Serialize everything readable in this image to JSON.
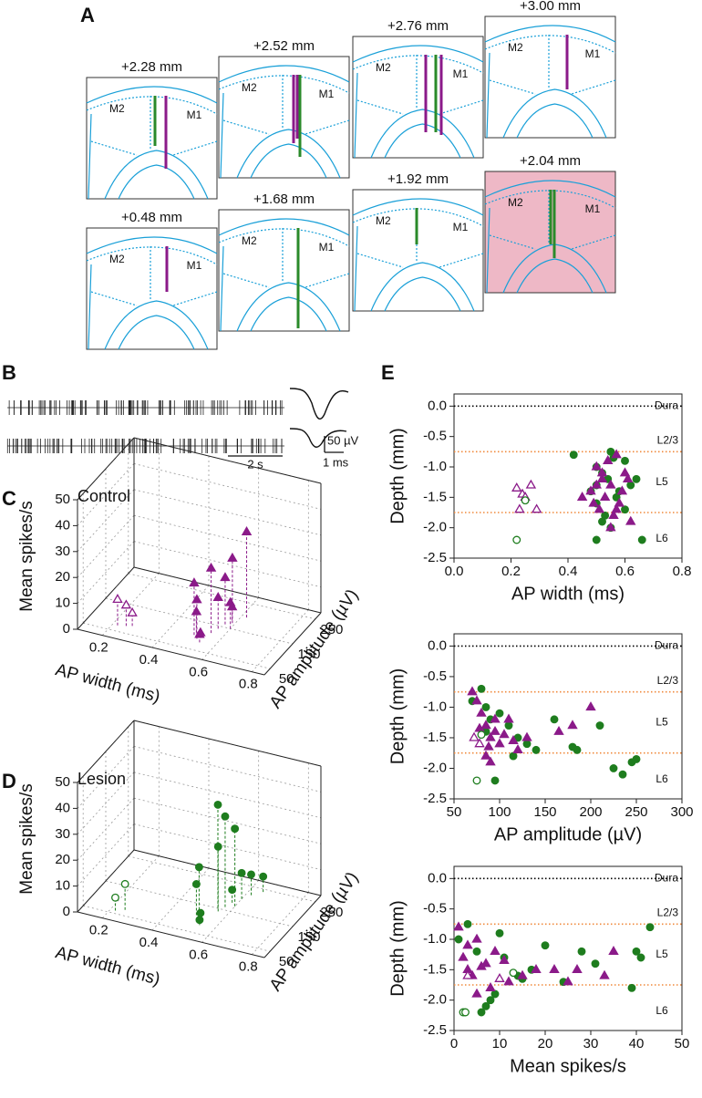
{
  "panel_labels": [
    "A",
    "B",
    "C",
    "D",
    "E"
  ],
  "panel_a": {
    "sections": [
      {
        "title": "+2.28 mm",
        "labels": [
          "M2",
          "M1"
        ]
      },
      {
        "title": "+2.52 mm",
        "labels": [
          "M2",
          "M1"
        ]
      },
      {
        "title": "+2.76 mm",
        "labels": [
          "M2",
          "M1"
        ]
      },
      {
        "title": "+3.00 mm",
        "labels": [
          "M2",
          "M1"
        ]
      },
      {
        "title": "+0.48 mm",
        "labels": [
          "M2",
          "M1"
        ]
      },
      {
        "title": "+1.68 mm",
        "labels": [
          "M2",
          "M1"
        ]
      },
      {
        "title": "+1.92 mm",
        "labels": [
          "M2",
          "M1"
        ]
      },
      {
        "title": "+2.04 mm",
        "labels": [
          "M2",
          "M1"
        ]
      }
    ]
  },
  "panel_b": {
    "scale_labels": [
      "50 µV",
      "1 ms",
      "2 s"
    ]
  },
  "chart_data": [
    {
      "type": "scatter3d",
      "title": "Control",
      "xlabel": "AP width (ms)",
      "ylabel": "AP amplitude (µV)",
      "zlabel": "Mean spikes/s",
      "xlim": [
        0.1,
        0.85
      ],
      "ylim": [
        25,
        275
      ],
      "zlim": [
        0,
        50
      ],
      "xticks": [
        0.2,
        0.4,
        0.6,
        0.8
      ],
      "yticks": [
        50,
        150,
        250
      ],
      "zticks": [
        0,
        10,
        20,
        30,
        40,
        50
      ],
      "series": [
        {
          "color": "#8b1a89",
          "marker": "triangle",
          "filled": true,
          "x": [
            0.5,
            0.55,
            0.52,
            0.6,
            0.58,
            0.54,
            0.62,
            0.5,
            0.56,
            0.57,
            0.53,
            0.59
          ],
          "y": [
            100,
            120,
            90,
            150,
            180,
            80,
            200,
            110,
            140,
            160,
            95,
            170
          ],
          "z": [
            20,
            25,
            15,
            10,
            5,
            3,
            33,
            8,
            12,
            18,
            2,
            25
          ]
        },
        {
          "color": "#8b1a89",
          "marker": "triangle",
          "filled": false,
          "x": [
            0.22,
            0.25,
            0.27
          ],
          "y": [
            70,
            75,
            80
          ],
          "z": [
            10,
            8,
            5
          ]
        }
      ]
    },
    {
      "type": "scatter3d",
      "title": "Lesion",
      "xlabel": "AP width (ms)",
      "ylabel": "AP amplitude (µV)",
      "zlabel": "Mean spikes/s",
      "xlim": [
        0.1,
        0.85
      ],
      "ylim": [
        25,
        275
      ],
      "zlim": [
        0,
        50
      ],
      "xticks": [
        0.2,
        0.4,
        0.6,
        0.8
      ],
      "yticks": [
        50,
        150,
        250
      ],
      "zticks": [
        0,
        10,
        20,
        30,
        40,
        50
      ],
      "series": [
        {
          "color": "#1e7d1e",
          "marker": "circle",
          "filled": true,
          "x": [
            0.55,
            0.57,
            0.52,
            0.6,
            0.58,
            0.54,
            0.62,
            0.5,
            0.56,
            0.65,
            0.53,
            0.6
          ],
          "y": [
            150,
            160,
            100,
            200,
            180,
            80,
            220,
            110,
            140,
            240,
            95,
            170
          ],
          "z": [
            40,
            35,
            20,
            10,
            5,
            2,
            8,
            12,
            25,
            6,
            3,
            30
          ]
        },
        {
          "color": "#1e7d1e",
          "marker": "circle",
          "filled": false,
          "x": [
            0.25,
            0.22
          ],
          "y": [
            70,
            60
          ],
          "z": [
            10,
            5
          ]
        }
      ]
    },
    {
      "type": "scatter",
      "xlabel": "AP width (ms)",
      "ylabel": "Depth (mm)",
      "xlim": [
        0,
        0.8
      ],
      "ylim": [
        -2.5,
        0.2
      ],
      "xticks": [
        {
          "value": 0,
          "label": "0.0"
        },
        0.2,
        0.4,
        0.6,
        0.8
      ],
      "yticks": [
        {
          "value": 0,
          "label": "0.0"
        },
        -0.5,
        {
          "value": -1,
          "label": "-1.0"
        },
        -1.5,
        {
          "value": -2,
          "label": "-2.0"
        },
        -2.5
      ],
      "hlines": [
        {
          "y": 0,
          "label": "Dura",
          "color": "#000000"
        },
        {
          "y": -0.75,
          "label": "L2/3",
          "color": "#f08a3c"
        },
        {
          "y": -1.75,
          "color": "#f08a3c"
        }
      ],
      "annotations": [
        "L5",
        "L6"
      ],
      "series": [
        {
          "color": "#1e7d1e",
          "marker": "circle",
          "filled": true,
          "x": [
            0.42,
            0.5,
            0.52,
            0.55,
            0.6,
            0.62,
            0.5,
            0.53,
            0.57,
            0.64,
            0.5,
            0.55,
            0.58,
            0.6,
            0.66,
            0.5,
            0.52,
            0.54,
            0.48,
            0.56
          ],
          "y": [
            -0.8,
            -1.0,
            -1.1,
            -0.75,
            -0.9,
            -1.3,
            -1.6,
            -1.8,
            -1.5,
            -1.2,
            -2.2,
            -2.0,
            -1.4,
            -1.7,
            -2.2,
            -1.3,
            -1.9,
            -1.2,
            -1.4,
            -0.85
          ]
        },
        {
          "color": "#8b1a89",
          "marker": "triangle",
          "filled": true,
          "x": [
            0.5,
            0.52,
            0.55,
            0.57,
            0.6,
            0.53,
            0.48,
            0.51,
            0.58,
            0.62,
            0.55,
            0.5,
            0.54,
            0.59,
            0.45,
            0.56,
            0.61,
            0.52,
            0.49,
            0.57
          ],
          "y": [
            -1.0,
            -1.2,
            -1.3,
            -0.8,
            -1.1,
            -1.5,
            -1.4,
            -1.7,
            -1.6,
            -1.9,
            -2.0,
            -1.3,
            -0.9,
            -1.4,
            -1.5,
            -1.8,
            -1.2,
            -1.1,
            -1.6,
            -1.7
          ]
        },
        {
          "color": "#8b1a89",
          "marker": "triangle",
          "filled": false,
          "x": [
            0.22,
            0.24,
            0.25,
            0.27,
            0.23,
            0.29
          ],
          "y": [
            -1.35,
            -1.45,
            -1.5,
            -1.3,
            -1.7,
            -1.7
          ]
        },
        {
          "color": "#1e7d1e",
          "marker": "circle",
          "filled": false,
          "x": [
            0.22,
            0.25
          ],
          "y": [
            -2.2,
            -1.55
          ]
        }
      ]
    },
    {
      "type": "scatter",
      "xlabel": "AP amplitude (µV)",
      "ylabel": "Depth (mm)",
      "xlim": [
        50,
        300
      ],
      "ylim": [
        -2.5,
        0.2
      ],
      "xticks": [
        50,
        100,
        150,
        200,
        250,
        300
      ],
      "yticks": [
        {
          "value": 0,
          "label": "0.0"
        },
        -0.5,
        {
          "value": -1,
          "label": "-1.0"
        },
        -1.5,
        {
          "value": -2,
          "label": "-2.0"
        },
        -2.5
      ],
      "hlines": [
        {
          "y": 0,
          "label": "Dura",
          "color": "#000000"
        },
        {
          "y": -0.75,
          "label": "L2/3",
          "color": "#f08a3c"
        },
        {
          "y": -1.75,
          "color": "#f08a3c"
        }
      ],
      "annotations": [
        "L5",
        "L6"
      ],
      "series": [
        {
          "color": "#1e7d1e",
          "marker": "circle",
          "filled": true,
          "x": [
            70,
            80,
            85,
            90,
            100,
            110,
            120,
            130,
            140,
            160,
            185,
            210,
            225,
            235,
            245,
            250,
            180,
            95,
            85,
            115
          ],
          "y": [
            -0.9,
            -0.7,
            -1.0,
            -1.2,
            -1.1,
            -1.3,
            -1.5,
            -1.6,
            -1.7,
            -1.2,
            -1.7,
            -1.3,
            -2.0,
            -2.1,
            -1.9,
            -1.85,
            -1.65,
            -2.2,
            -1.4,
            -1.8
          ]
        },
        {
          "color": "#8b1a89",
          "marker": "triangle",
          "filled": true,
          "x": [
            70,
            75,
            80,
            85,
            90,
            95,
            100,
            110,
            120,
            85,
            90,
            130,
            165,
            180,
            200,
            95,
            105,
            88,
            78,
            115
          ],
          "y": [
            -0.75,
            -0.9,
            -1.1,
            -1.3,
            -1.5,
            -1.4,
            -1.6,
            -1.2,
            -1.7,
            -1.8,
            -1.9,
            -1.5,
            -1.4,
            -1.3,
            -1.0,
            -1.2,
            -1.45,
            -1.65,
            -1.35,
            -1.55
          ]
        },
        {
          "color": "#8b1a89",
          "marker": "triangle",
          "filled": false,
          "x": [
            72,
            78
          ],
          "y": [
            -1.5,
            -1.6
          ]
        },
        {
          "color": "#1e7d1e",
          "marker": "circle",
          "filled": false,
          "x": [
            75,
            80
          ],
          "y": [
            -2.2,
            -1.45
          ]
        }
      ]
    },
    {
      "type": "scatter",
      "xlabel": "Mean spikes/s",
      "ylabel": "Depth (mm)",
      "xlim": [
        0,
        50
      ],
      "ylim": [
        -2.5,
        0.2
      ],
      "xticks": [
        0,
        10,
        20,
        30,
        40,
        50
      ],
      "yticks": [
        {
          "value": 0,
          "label": "0.0"
        },
        -0.5,
        {
          "value": -1,
          "label": "-1.0"
        },
        -1.5,
        {
          "value": -2,
          "label": "-2.0"
        },
        -2.5
      ],
      "hlines": [
        {
          "y": 0,
          "label": "Dura",
          "color": "#000000"
        },
        {
          "y": -0.75,
          "label": "L2/3",
          "color": "#f08a3c"
        },
        {
          "y": -1.75,
          "color": "#f08a3c"
        }
      ],
      "annotations": [
        "L5",
        "L6"
      ],
      "series": [
        {
          "color": "#1e7d1e",
          "marker": "circle",
          "filled": true,
          "x": [
            1,
            3,
            5,
            7,
            9,
            11,
            14,
            17,
            20,
            24,
            28,
            31,
            40,
            41,
            43,
            39,
            6,
            10,
            8,
            15
          ],
          "y": [
            -1.0,
            -0.75,
            -1.2,
            -2.1,
            -1.9,
            -1.3,
            -1.6,
            -1.5,
            -1.1,
            -1.7,
            -1.2,
            -1.4,
            -1.2,
            -1.3,
            -0.8,
            -1.8,
            -2.2,
            -0.9,
            -2.0,
            -1.65
          ]
        },
        {
          "color": "#8b1a89",
          "marker": "triangle",
          "filled": true,
          "x": [
            1,
            2,
            3,
            4,
            5,
            7,
            9,
            12,
            15,
            18,
            22,
            25,
            27,
            33,
            35,
            5,
            8,
            3,
            6,
            11
          ],
          "y": [
            -0.8,
            -1.3,
            -1.5,
            -1.6,
            -1.0,
            -1.4,
            -1.2,
            -1.7,
            -1.6,
            -1.5,
            -1.5,
            -1.7,
            -1.5,
            -1.6,
            -1.2,
            -1.9,
            -1.8,
            -1.1,
            -1.45,
            -1.35
          ]
        },
        {
          "color": "#8b1a89",
          "marker": "triangle",
          "filled": false,
          "x": [
            3,
            10
          ],
          "y": [
            -1.6,
            -1.65
          ]
        },
        {
          "color": "#1e7d1e",
          "marker": "circle",
          "filled": false,
          "x": [
            2,
            2.5,
            13
          ],
          "y": [
            -2.2,
            -2.2,
            -1.55
          ]
        }
      ]
    }
  ]
}
